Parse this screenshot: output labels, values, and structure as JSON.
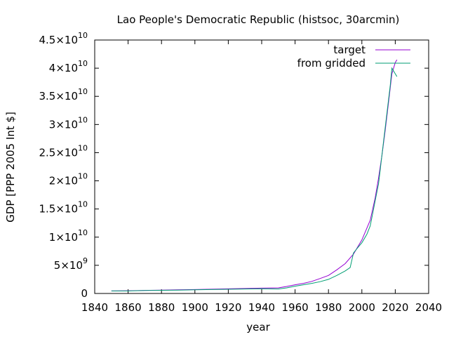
{
  "chart_data": {
    "type": "line",
    "title": "Lao People's Democratic Republic (histsoc, 30arcmin)",
    "xlabel": "year",
    "ylabel": "GDP [PPP 2005 Int $]",
    "xlim": [
      1840,
      2040
    ],
    "ylim": [
      0,
      45000000000
    ],
    "x_ticks": [
      1840,
      1860,
      1880,
      1900,
      1920,
      1940,
      1960,
      1980,
      2000,
      2020,
      2040
    ],
    "y_ticks": [
      {
        "value": 0,
        "mant": "0",
        "exp": ""
      },
      {
        "value": 5000000000,
        "mant": "5×10",
        "exp": "9"
      },
      {
        "value": 10000000000,
        "mant": "1×10",
        "exp": "10"
      },
      {
        "value": 15000000000,
        "mant": "1.5×10",
        "exp": "10"
      },
      {
        "value": 20000000000,
        "mant": "2×10",
        "exp": "10"
      },
      {
        "value": 25000000000,
        "mant": "2.5×10",
        "exp": "10"
      },
      {
        "value": 30000000000,
        "mant": "3×10",
        "exp": "10"
      },
      {
        "value": 35000000000,
        "mant": "3.5×10",
        "exp": "10"
      },
      {
        "value": 40000000000,
        "mant": "4×10",
        "exp": "10"
      },
      {
        "value": 45000000000,
        "mant": "4.5×10",
        "exp": "10"
      }
    ],
    "legend_position": "top-right",
    "grid": false,
    "series": [
      {
        "name": "target",
        "color": "#9400d3",
        "points": [
          [
            1850,
            450000000
          ],
          [
            1860,
            480000000
          ],
          [
            1870,
            550000000
          ],
          [
            1880,
            600000000
          ],
          [
            1890,
            650000000
          ],
          [
            1900,
            700000000
          ],
          [
            1910,
            760000000
          ],
          [
            1920,
            820000000
          ],
          [
            1930,
            880000000
          ],
          [
            1940,
            950000000
          ],
          [
            1950,
            1000000000
          ],
          [
            1955,
            1250000000
          ],
          [
            1960,
            1550000000
          ],
          [
            1965,
            1800000000
          ],
          [
            1970,
            2150000000
          ],
          [
            1975,
            2650000000
          ],
          [
            1980,
            3200000000
          ],
          [
            1985,
            4200000000
          ],
          [
            1990,
            5300000000
          ],
          [
            1995,
            7000000000
          ],
          [
            2000,
            9500000000
          ],
          [
            2005,
            13000000000
          ],
          [
            2008,
            17000000000
          ],
          [
            2010,
            20500000000
          ],
          [
            2012,
            24500000000
          ],
          [
            2014,
            29000000000
          ],
          [
            2016,
            34000000000
          ],
          [
            2018,
            39000000000
          ],
          [
            2020,
            41000000000
          ],
          [
            2021,
            41500000000
          ]
        ]
      },
      {
        "name": "from gridded",
        "color": "#009e73",
        "points": [
          [
            1850,
            450000000
          ],
          [
            1860,
            450000000
          ],
          [
            1870,
            520000000
          ],
          [
            1880,
            560000000
          ],
          [
            1890,
            600000000
          ],
          [
            1900,
            650000000
          ],
          [
            1910,
            700000000
          ],
          [
            1920,
            750000000
          ],
          [
            1930,
            800000000
          ],
          [
            1940,
            850000000
          ],
          [
            1950,
            800000000
          ],
          [
            1955,
            1000000000
          ],
          [
            1960,
            1300000000
          ],
          [
            1965,
            1550000000
          ],
          [
            1970,
            1800000000
          ],
          [
            1975,
            2100000000
          ],
          [
            1980,
            2500000000
          ],
          [
            1985,
            3200000000
          ],
          [
            1990,
            4000000000
          ],
          [
            1993,
            4600000000
          ],
          [
            1995,
            7200000000
          ],
          [
            1998,
            8300000000
          ],
          [
            2000,
            9000000000
          ],
          [
            2003,
            10500000000
          ],
          [
            2005,
            12000000000
          ],
          [
            2007,
            15000000000
          ],
          [
            2008,
            16500000000
          ],
          [
            2010,
            19500000000
          ],
          [
            2011,
            22000000000
          ],
          [
            2013,
            27000000000
          ],
          [
            2015,
            32000000000
          ],
          [
            2017,
            37000000000
          ],
          [
            2018,
            40000000000
          ],
          [
            2019,
            39500000000
          ],
          [
            2020,
            39000000000
          ],
          [
            2021,
            38500000000
          ]
        ]
      }
    ]
  }
}
